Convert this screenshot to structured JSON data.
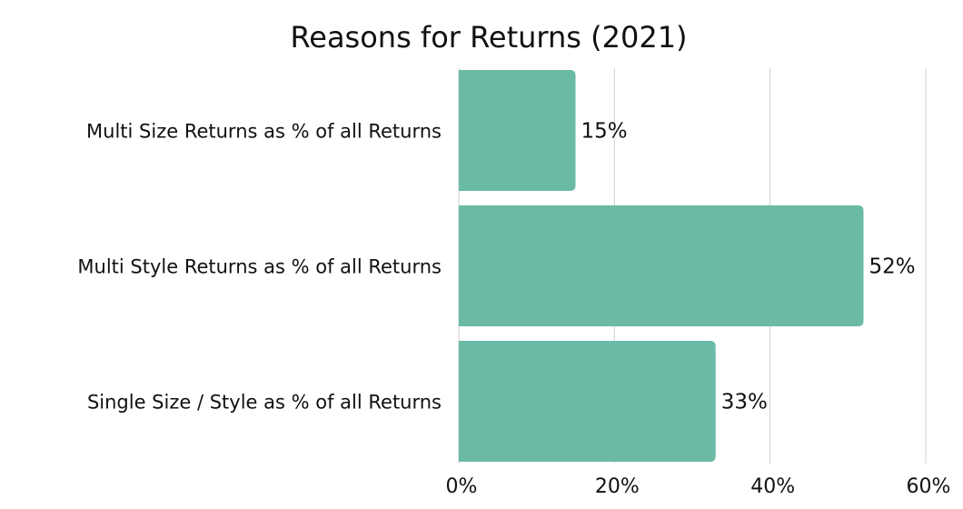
{
  "chart_data": {
    "type": "bar",
    "orientation": "horizontal",
    "title": "Reasons for Returns (2021)",
    "categories": [
      "Multi Size Returns as % of all Returns",
      "Multi Style Returns as % of all Returns",
      "Single Size / Style as % of all Returns"
    ],
    "values": [
      15,
      52,
      33
    ],
    "data_labels": [
      "15%",
      "52%",
      "33%"
    ],
    "xlim": [
      0,
      60
    ],
    "x_ticks": [
      0,
      20,
      40,
      60
    ],
    "x_tick_labels": [
      "0%",
      "20%",
      "40%",
      "60%"
    ],
    "grid": true,
    "legend": "none",
    "bar_color": "#6ABAA5"
  }
}
